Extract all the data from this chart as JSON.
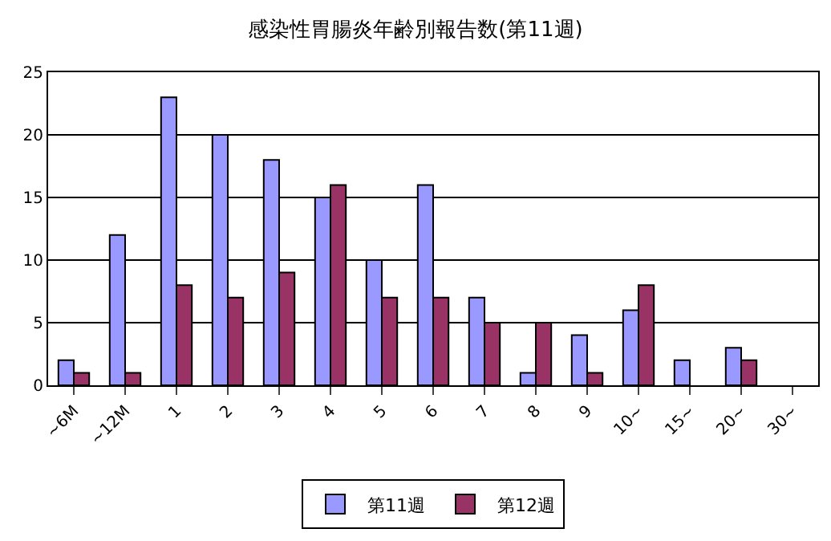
{
  "chart_data": {
    "type": "bar",
    "title": "感染性胃腸炎年齢別報告数(第11週)",
    "categories": [
      "~6M",
      "~12M",
      "1",
      "2",
      "3",
      "4",
      "5",
      "6",
      "7",
      "8",
      "9",
      "10~",
      "15~",
      "20~",
      "30~"
    ],
    "series": [
      {
        "name": "第11週",
        "color": "#9999ff",
        "values": [
          2,
          12,
          23,
          20,
          18,
          15,
          10,
          16,
          7,
          1,
          4,
          6,
          2,
          3,
          null
        ]
      },
      {
        "name": "第12週",
        "color": "#993366",
        "values": [
          1,
          1,
          8,
          7,
          9,
          16,
          7,
          7,
          5,
          5,
          1,
          8,
          null,
          2,
          null
        ]
      }
    ],
    "ylim": [
      0,
      25
    ],
    "yticks": [
      0,
      5,
      10,
      15,
      20,
      25
    ],
    "grid": "y",
    "legend": "bottom"
  }
}
